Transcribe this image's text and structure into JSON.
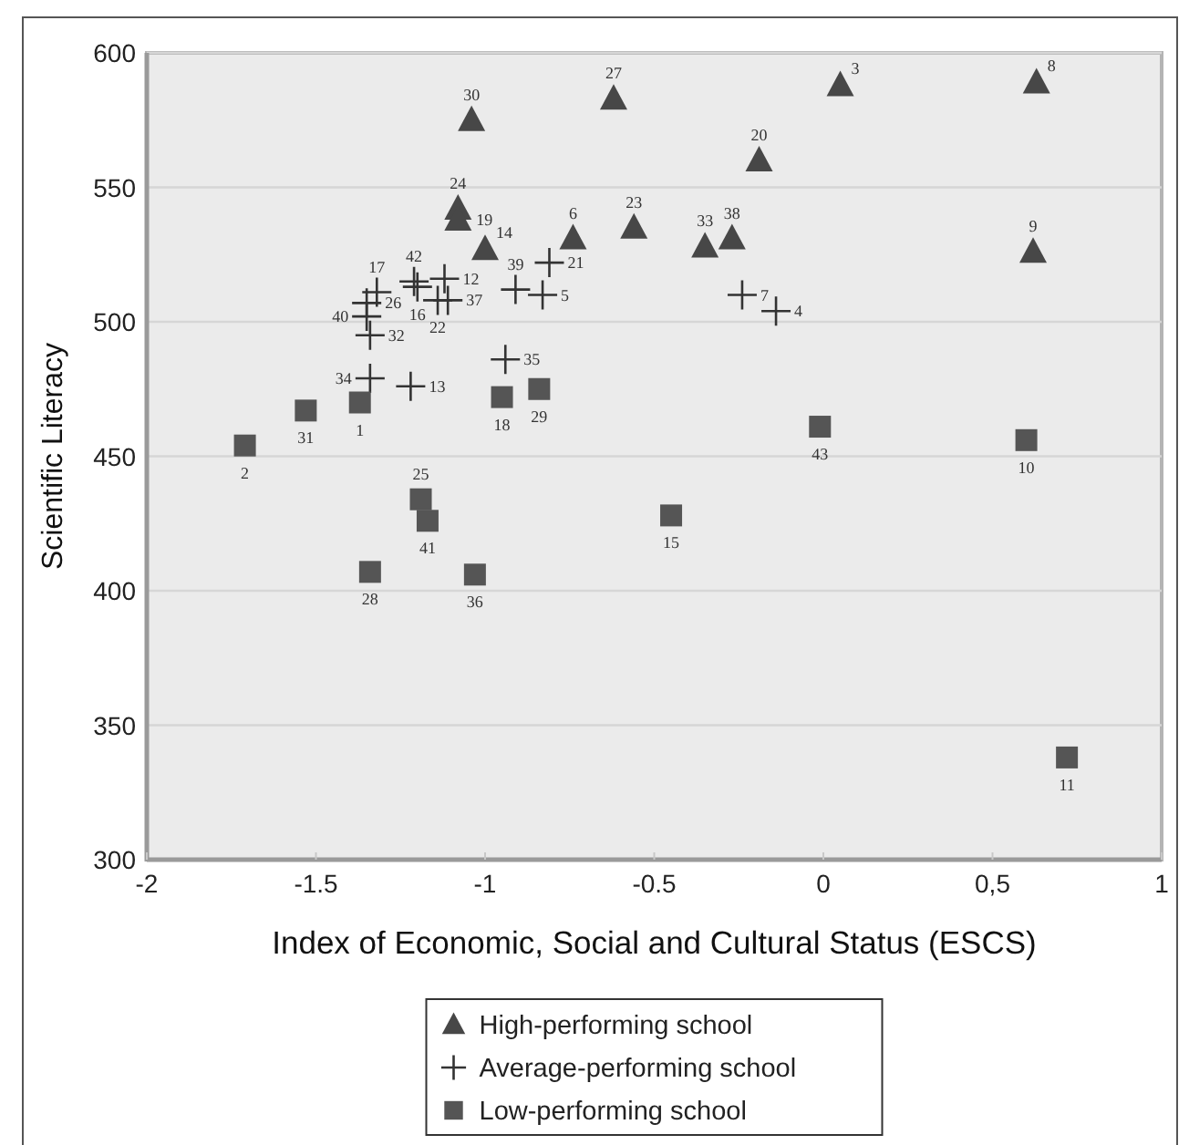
{
  "chart_data": {
    "type": "scatter",
    "xlabel": "Index of Economic, Social and Cultural Status (ESCS)",
    "ylabel": "Scientific Literacy",
    "xlim": [
      -2,
      1
    ],
    "ylim": [
      300,
      600
    ],
    "xticks": [
      -2,
      -1.5,
      -1,
      -0.5,
      0,
      {
        "value": 0.5,
        "label": "0,5"
      },
      1
    ],
    "yticks": [
      300,
      350,
      400,
      450,
      500,
      550,
      600
    ],
    "grid": "y",
    "legend": "bottom",
    "series": [
      {
        "name": "High-performing school",
        "color": "#474747",
        "marker": "triangle",
        "x": [
          -1.04,
          -0.62,
          0.05,
          0.63,
          -0.19,
          -1.08,
          -1.08,
          -1.0,
          -0.74,
          -0.56,
          -0.35,
          -0.27,
          0.62
        ],
        "values": [
          575,
          583,
          588,
          589,
          560,
          542,
          538,
          527,
          531,
          535,
          528,
          531,
          526
        ]
      },
      {
        "name": "Average-performing school",
        "color": "#333333",
        "marker": "cross",
        "x": [
          -1.32,
          -1.35,
          -1.35,
          -1.34,
          -1.34,
          -1.22,
          -1.21,
          -1.2,
          -1.12,
          -1.14,
          -1.11,
          -0.94,
          -0.91,
          -0.83,
          -0.81,
          -0.24,
          -0.14
        ],
        "values": [
          511,
          507,
          502,
          495,
          479,
          476,
          515,
          513,
          516,
          508,
          508,
          486,
          512,
          510,
          522,
          510,
          504
        ]
      },
      {
        "name": "Low-performing school",
        "color": "#555555",
        "marker": "square",
        "x": [
          -1.71,
          -1.53,
          -1.37,
          -0.95,
          -0.84,
          -1.19,
          -1.17,
          -1.34,
          -1.03,
          -0.45,
          -0.01,
          0.6,
          0.72
        ],
        "values": [
          454,
          467,
          470,
          472,
          475,
          434,
          426,
          407,
          406,
          428,
          461,
          456,
          338
        ]
      }
    ],
    "annotations": [
      {
        "text": "30",
        "x": -1.04,
        "y": 575
      },
      {
        "text": "27",
        "x": -0.62,
        "y": 583
      },
      {
        "text": "3",
        "x": 0.05,
        "y": 588
      },
      {
        "text": "8",
        "x": 0.63,
        "y": 589
      },
      {
        "text": "20",
        "x": -0.19,
        "y": 560
      },
      {
        "text": "24",
        "x": -1.08,
        "y": 542
      },
      {
        "text": "19",
        "x": -1.08,
        "y": 538
      },
      {
        "text": "14",
        "x": -1.0,
        "y": 527
      },
      {
        "text": "6",
        "x": -0.74,
        "y": 531
      },
      {
        "text": "23",
        "x": -0.56,
        "y": 535
      },
      {
        "text": "33",
        "x": -0.35,
        "y": 528
      },
      {
        "text": "38",
        "x": -0.27,
        "y": 531
      },
      {
        "text": "9",
        "x": 0.62,
        "y": 526
      },
      {
        "text": "17",
        "x": -1.32,
        "y": 511
      },
      {
        "text": "26",
        "x": -1.35,
        "y": 507
      },
      {
        "text": "40",
        "x": -1.35,
        "y": 502
      },
      {
        "text": "32",
        "x": -1.34,
        "y": 495
      },
      {
        "text": "34",
        "x": -1.34,
        "y": 479
      },
      {
        "text": "13",
        "x": -1.22,
        "y": 476
      },
      {
        "text": "42",
        "x": -1.21,
        "y": 515
      },
      {
        "text": "16",
        "x": -1.2,
        "y": 513
      },
      {
        "text": "12",
        "x": -1.12,
        "y": 516
      },
      {
        "text": "22",
        "x": -1.14,
        "y": 508
      },
      {
        "text": "37",
        "x": -1.11,
        "y": 508
      },
      {
        "text": "35",
        "x": -0.94,
        "y": 486
      },
      {
        "text": "39",
        "x": -0.91,
        "y": 512
      },
      {
        "text": "5",
        "x": -0.83,
        "y": 510
      },
      {
        "text": "21",
        "x": -0.81,
        "y": 522
      },
      {
        "text": "7",
        "x": -0.24,
        "y": 510
      },
      {
        "text": "4",
        "x": -0.14,
        "y": 504
      },
      {
        "text": "2",
        "x": -1.71,
        "y": 454
      },
      {
        "text": "31",
        "x": -1.53,
        "y": 467
      },
      {
        "text": "1",
        "x": -1.37,
        "y": 470
      },
      {
        "text": "18",
        "x": -0.95,
        "y": 472
      },
      {
        "text": "29",
        "x": -0.84,
        "y": 475
      },
      {
        "text": "25",
        "x": -1.19,
        "y": 434
      },
      {
        "text": "41",
        "x": -1.17,
        "y": 426
      },
      {
        "text": "28",
        "x": -1.34,
        "y": 407
      },
      {
        "text": "36",
        "x": -1.03,
        "y": 406
      },
      {
        "text": "15",
        "x": -0.45,
        "y": 428
      },
      {
        "text": "43",
        "x": -0.01,
        "y": 461
      },
      {
        "text": "10",
        "x": 0.6,
        "y": 456
      },
      {
        "text": "11",
        "x": 0.72,
        "y": 338
      }
    ]
  }
}
